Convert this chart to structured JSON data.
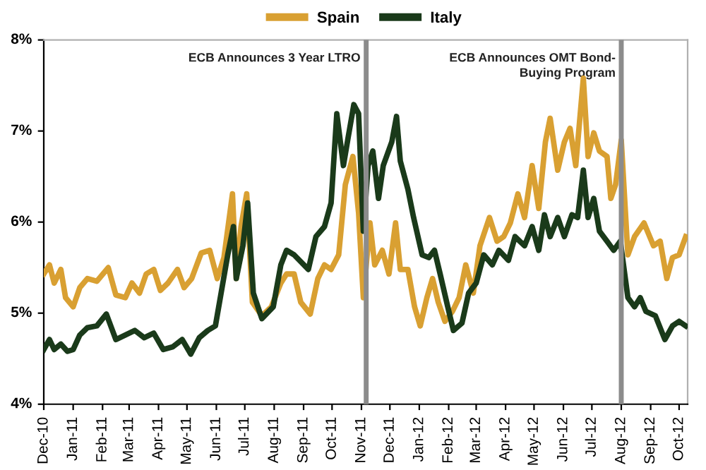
{
  "chart_data": {
    "type": "line",
    "series": [
      {
        "name": "Spain",
        "color": "#d9a032",
        "x": [
          "2010-12-01",
          "2010-12-07",
          "2010-12-12",
          "2010-12-19",
          "2010-12-24",
          "2011-01-01",
          "2011-01-08",
          "2011-01-16",
          "2011-01-26",
          "2011-02-07",
          "2011-02-15",
          "2011-02-25",
          "2011-03-04",
          "2011-03-12",
          "2011-03-19",
          "2011-03-27",
          "2011-04-03",
          "2011-04-11",
          "2011-04-21",
          "2011-04-28",
          "2011-05-06",
          "2011-05-16",
          "2011-05-25",
          "2011-06-02",
          "2011-06-09",
          "2011-06-18",
          "2011-06-22",
          "2011-06-27",
          "2011-07-03",
          "2011-07-09",
          "2011-07-19",
          "2011-07-29",
          "2011-08-08",
          "2011-08-14",
          "2011-08-22",
          "2011-08-29",
          "2011-09-08",
          "2011-09-16",
          "2011-09-23",
          "2011-09-30",
          "2011-10-08",
          "2011-10-15",
          "2011-10-23",
          "2011-10-29",
          "2011-11-03",
          "2011-11-10",
          "2011-11-15",
          "2011-11-23",
          "2011-11-30",
          "2011-12-07",
          "2011-12-12",
          "2011-12-20",
          "2011-12-27",
          "2012-01-02",
          "2012-01-09",
          "2012-01-15",
          "2012-01-21",
          "2012-01-28",
          "2012-02-05",
          "2012-02-12",
          "2012-02-19",
          "2012-02-27",
          "2012-03-05",
          "2012-03-15",
          "2012-03-23",
          "2012-03-30",
          "2012-04-06",
          "2012-04-14",
          "2012-04-21",
          "2012-04-29",
          "2012-05-06",
          "2012-05-13",
          "2012-05-18",
          "2012-05-26",
          "2012-06-02",
          "2012-06-08",
          "2012-06-14",
          "2012-06-22",
          "2012-06-27",
          "2012-07-03",
          "2012-07-09",
          "2012-07-17",
          "2012-07-21",
          "2012-07-26",
          "2012-08-01",
          "2012-08-08",
          "2012-08-15",
          "2012-08-25",
          "2012-09-04",
          "2012-09-11",
          "2012-09-18",
          "2012-09-24",
          "2012-10-01",
          "2012-10-08"
        ],
        "values": [
          5.43,
          5.53,
          5.33,
          5.48,
          5.17,
          5.07,
          5.28,
          5.38,
          5.35,
          5.5,
          5.2,
          5.17,
          5.33,
          5.22,
          5.43,
          5.48,
          5.25,
          5.33,
          5.48,
          5.28,
          5.38,
          5.66,
          5.69,
          5.38,
          5.61,
          6.31,
          5.38,
          5.95,
          6.31,
          5.12,
          4.97,
          5.07,
          5.33,
          5.43,
          5.43,
          5.12,
          4.99,
          5.38,
          5.53,
          5.48,
          5.64,
          6.41,
          6.72,
          6.1,
          5.17,
          5.99,
          5.53,
          5.69,
          5.43,
          5.99,
          5.48,
          5.48,
          5.07,
          4.86,
          5.17,
          5.38,
          5.12,
          4.91,
          5.02,
          5.17,
          5.53,
          5.22,
          5.74,
          6.05,
          5.79,
          5.84,
          5.99,
          6.31,
          6.05,
          6.62,
          6.15,
          6.88,
          7.14,
          6.57,
          6.88,
          7.03,
          6.62,
          7.58,
          6.72,
          6.98,
          6.78,
          6.72,
          6.26,
          6.41,
          6.9,
          5.64,
          5.84,
          5.99,
          5.74,
          5.79,
          5.38,
          5.61,
          5.64,
          5.84
        ]
      },
      {
        "name": "Italy",
        "color": "#1a3a1a",
        "x": [
          "2010-12-01",
          "2010-12-07",
          "2010-12-12",
          "2010-12-19",
          "2010-12-26",
          "2011-01-01",
          "2011-01-08",
          "2011-01-16",
          "2011-01-26",
          "2011-02-05",
          "2011-02-15",
          "2011-02-25",
          "2011-03-07",
          "2011-03-17",
          "2011-03-27",
          "2011-04-06",
          "2011-04-16",
          "2011-04-26",
          "2011-05-05",
          "2011-05-14",
          "2011-05-23",
          "2011-05-31",
          "2011-06-06",
          "2011-06-13",
          "2011-06-19",
          "2011-06-22",
          "2011-06-29",
          "2011-07-04",
          "2011-07-10",
          "2011-07-19",
          "2011-07-31",
          "2011-08-08",
          "2011-08-14",
          "2011-08-22",
          "2011-09-06",
          "2011-09-14",
          "2011-09-23",
          "2011-09-30",
          "2011-10-06",
          "2011-10-13",
          "2011-10-18",
          "2011-10-24",
          "2011-10-29",
          "2011-11-03",
          "2011-11-08",
          "2011-11-13",
          "2011-11-19",
          "2011-11-24",
          "2011-12-03",
          "2011-12-08",
          "2011-12-12",
          "2011-12-20",
          "2011-12-26",
          "2012-01-04",
          "2012-01-11",
          "2012-01-17",
          "2012-01-23",
          "2012-01-31",
          "2012-02-06",
          "2012-02-15",
          "2012-02-22",
          "2012-03-01",
          "2012-03-09",
          "2012-03-18",
          "2012-03-25",
          "2012-04-04",
          "2012-04-11",
          "2012-04-21",
          "2012-04-29",
          "2012-05-06",
          "2012-05-12",
          "2012-05-18",
          "2012-05-26",
          "2012-06-02",
          "2012-06-10",
          "2012-06-16",
          "2012-06-22",
          "2012-06-27",
          "2012-07-03",
          "2012-07-09",
          "2012-07-17",
          "2012-07-24",
          "2012-07-31",
          "2012-08-08",
          "2012-08-15",
          "2012-08-21",
          "2012-08-27",
          "2012-09-06",
          "2012-09-16",
          "2012-09-24",
          "2012-10-01",
          "2012-10-08"
        ],
        "values": [
          4.6,
          4.71,
          4.6,
          4.66,
          4.58,
          4.6,
          4.76,
          4.84,
          4.86,
          4.99,
          4.71,
          4.76,
          4.81,
          4.73,
          4.78,
          4.6,
          4.63,
          4.71,
          4.55,
          4.73,
          4.81,
          4.86,
          5.22,
          5.64,
          5.95,
          5.38,
          5.74,
          6.21,
          5.22,
          4.94,
          5.07,
          5.53,
          5.69,
          5.64,
          5.48,
          5.84,
          5.95,
          6.21,
          7.19,
          6.62,
          6.93,
          7.29,
          7.19,
          5.9,
          6.62,
          6.78,
          6.26,
          6.62,
          6.88,
          7.16,
          6.67,
          6.36,
          6.05,
          5.64,
          5.61,
          5.69,
          5.43,
          5.07,
          4.81,
          4.89,
          5.22,
          5.33,
          5.64,
          5.53,
          5.69,
          5.58,
          5.84,
          5.74,
          5.95,
          5.69,
          6.08,
          5.84,
          6.05,
          5.84,
          6.08,
          6.05,
          6.57,
          6.05,
          6.26,
          5.9,
          5.79,
          5.69,
          5.79,
          5.17,
          5.07,
          5.17,
          5.02,
          4.97,
          4.71,
          4.86,
          4.91,
          4.86
        ]
      }
    ],
    "xlim": [
      "2010-12-01",
      "2012-10-10"
    ],
    "xticks": [
      {
        "value": "2010-12-01",
        "label": "Dec-10"
      },
      {
        "value": "2011-01-01",
        "label": "Jan-11"
      },
      {
        "value": "2011-02-01",
        "label": "Feb-11"
      },
      {
        "value": "2011-03-01",
        "label": "Mar-11"
      },
      {
        "value": "2011-04-01",
        "label": "Apr-11"
      },
      {
        "value": "2011-05-01",
        "label": "May-11"
      },
      {
        "value": "2011-06-01",
        "label": "Jun-11"
      },
      {
        "value": "2011-07-01",
        "label": "Jul-11"
      },
      {
        "value": "2011-08-01",
        "label": "Aug-11"
      },
      {
        "value": "2011-09-01",
        "label": "Sep-11"
      },
      {
        "value": "2011-10-01",
        "label": "Oct-11"
      },
      {
        "value": "2011-11-01",
        "label": "Nov-11"
      },
      {
        "value": "2011-12-01",
        "label": "Dec-11"
      },
      {
        "value": "2012-01-01",
        "label": "Jan-12"
      },
      {
        "value": "2012-02-01",
        "label": "Feb-12"
      },
      {
        "value": "2012-03-01",
        "label": "Mar-12"
      },
      {
        "value": "2012-04-01",
        "label": "Apr-12"
      },
      {
        "value": "2012-05-01",
        "label": "May-12"
      },
      {
        "value": "2012-06-01",
        "label": "Jun-12"
      },
      {
        "value": "2012-07-01",
        "label": "Jul-12"
      },
      {
        "value": "2012-08-01",
        "label": "Aug-12"
      },
      {
        "value": "2012-09-01",
        "label": "Sep-12"
      },
      {
        "value": "2012-10-01",
        "label": "Oct-12"
      }
    ],
    "ylim": [
      4,
      8
    ],
    "yticks": [
      {
        "value": 4,
        "label": "4%"
      },
      {
        "value": 5,
        "label": "5%"
      },
      {
        "value": 6,
        "label": "6%"
      },
      {
        "value": 7,
        "label": "7%"
      },
      {
        "value": 8,
        "label": "8%"
      }
    ],
    "ref_lines": [
      {
        "axis": "x",
        "value": "2011-11-06",
        "label": "ECB Announces 3 Year LTRO",
        "color": "#8c8c8c"
      },
      {
        "axis": "x",
        "value": "2012-08-01",
        "label": "ECB Announces OMT Bond-\nBuying Program",
        "color": "#8c8c8c"
      }
    ],
    "grid": false,
    "legend": "top",
    "marker": "none",
    "line_style": "solid"
  }
}
